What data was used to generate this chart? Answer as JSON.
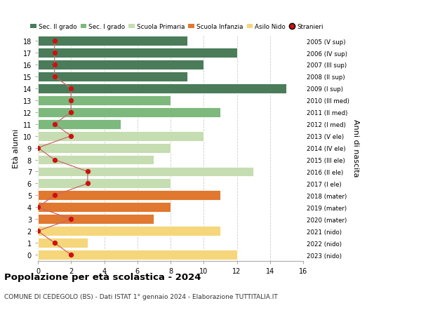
{
  "ages": [
    18,
    17,
    16,
    15,
    14,
    13,
    12,
    11,
    10,
    9,
    8,
    7,
    6,
    5,
    4,
    3,
    2,
    1,
    0
  ],
  "bar_values": [
    9,
    12,
    10,
    9,
    15,
    8,
    11,
    5,
    10,
    8,
    7,
    13,
    8,
    11,
    8,
    7,
    11,
    3,
    12
  ],
  "bar_colors": [
    "#4a7c59",
    "#4a7c59",
    "#4a7c59",
    "#4a7c59",
    "#4a7c59",
    "#7db87d",
    "#7db87d",
    "#7db87d",
    "#c5ddb0",
    "#c5ddb0",
    "#c5ddb0",
    "#c5ddb0",
    "#c5ddb0",
    "#e07830",
    "#e07830",
    "#e07830",
    "#f5d67a",
    "#f5d67a",
    "#f5d67a"
  ],
  "stranieri_values": [
    1,
    1,
    1,
    1,
    2,
    2,
    2,
    1,
    2,
    0,
    1,
    3,
    3,
    1,
    0,
    2,
    0,
    1,
    2
  ],
  "right_labels": [
    "2005 (V sup)",
    "2006 (IV sup)",
    "2007 (III sup)",
    "2008 (II sup)",
    "2009 (I sup)",
    "2010 (III med)",
    "2011 (II med)",
    "2012 (I med)",
    "2013 (V ele)",
    "2014 (IV ele)",
    "2015 (III ele)",
    "2016 (II ele)",
    "2017 (I ele)",
    "2018 (mater)",
    "2019 (mater)",
    "2020 (mater)",
    "2021 (nido)",
    "2022 (nido)",
    "2023 (nido)"
  ],
  "legend_labels": [
    "Sec. II grado",
    "Sec. I grado",
    "Scuola Primaria",
    "Scuola Infanzia",
    "Asilo Nido",
    "Stranieri"
  ],
  "legend_colors": [
    "#4a7c59",
    "#7db87d",
    "#c5ddb0",
    "#e07830",
    "#f5d67a",
    "#cc1111"
  ],
  "ylabel_left": "Età alunni",
  "ylabel_right": "Anni di nascita",
  "title": "Popolazione per età scolastica - 2024",
  "subtitle": "COMUNE DI CEDEGOLO (BS) - Dati ISTAT 1° gennaio 2024 - Elaborazione TUTTITALIA.IT",
  "xlim": [
    0,
    16
  ],
  "ylim": [
    -0.5,
    18.5
  ],
  "stranieri_color": "#cc1111",
  "stranieri_line_color": "#cc6666",
  "grid_color": "#cccccc",
  "bg_color": "#ffffff"
}
